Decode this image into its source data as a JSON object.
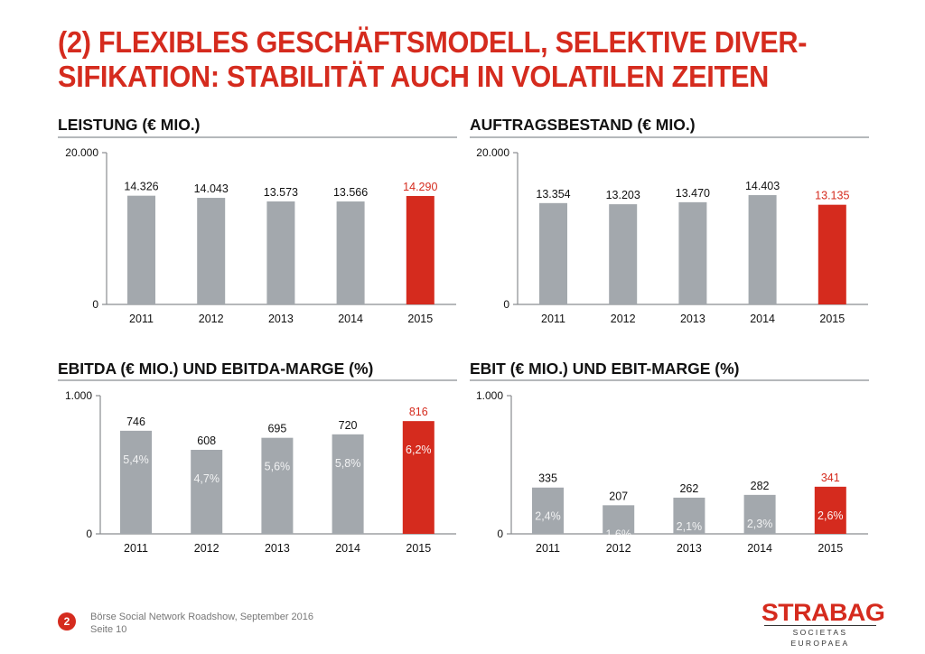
{
  "header": {
    "title_line1": "(2) FLEXIBLES GESCHÄFTSMODELL, SELEKTIVE DIVER-",
    "title_line2": "SIFIKATION: STABILITÄT AUCH IN VOLATILEN ZEITEN"
  },
  "colors": {
    "accent": "#d52b1e",
    "bar_default": "#a3a8ad",
    "bar_highlight": "#d52b1e",
    "axis": "#8a8d90"
  },
  "chart_data": [
    {
      "type": "bar",
      "title": "LEISTUNG (€ MIO.)",
      "categories": [
        "2011",
        "2012",
        "2013",
        "2014",
        "2015"
      ],
      "values": [
        14326,
        14043,
        13573,
        13566,
        14290
      ],
      "value_labels": [
        "14.326",
        "14.043",
        "13.573",
        "13.566",
        "14.290"
      ],
      "inner_labels": [],
      "highlight_index": 4,
      "ylim": [
        0,
        20000
      ],
      "ytick_labels": [
        "0",
        "20.000"
      ],
      "xlabel": "",
      "ylabel": "",
      "grid": false
    },
    {
      "type": "bar",
      "title": "AUFTRAGSBESTAND (€ MIO.)",
      "categories": [
        "2011",
        "2012",
        "2013",
        "2014",
        "2015"
      ],
      "values": [
        13354,
        13203,
        13470,
        14403,
        13135
      ],
      "value_labels": [
        "13.354",
        "13.203",
        "13.470",
        "14.403",
        "13.135"
      ],
      "inner_labels": [],
      "highlight_index": 4,
      "ylim": [
        0,
        20000
      ],
      "ytick_labels": [
        "0",
        "20.000"
      ],
      "xlabel": "",
      "ylabel": "",
      "grid": false
    },
    {
      "type": "bar",
      "title": "EBITDA (€ MIO.) UND EBITDA-MARGE (%)",
      "categories": [
        "2011",
        "2012",
        "2013",
        "2014",
        "2015"
      ],
      "values": [
        746,
        608,
        695,
        720,
        816
      ],
      "value_labels": [
        "746",
        "608",
        "695",
        "720",
        "816"
      ],
      "inner_labels": [
        "5,4%",
        "4,7%",
        "5,6%",
        "5,8%",
        "6,2%"
      ],
      "margin_percent": [
        5.4,
        4.7,
        5.6,
        5.8,
        6.2
      ],
      "highlight_index": 4,
      "ylim": [
        0,
        1000
      ],
      "ytick_labels": [
        "0",
        "1.000"
      ],
      "xlabel": "",
      "ylabel": "",
      "grid": false
    },
    {
      "type": "bar",
      "title": "EBIT (€ MIO.) UND EBIT-MARGE (%)",
      "categories": [
        "2011",
        "2012",
        "2013",
        "2014",
        "2015"
      ],
      "values": [
        335,
        207,
        262,
        282,
        341
      ],
      "value_labels": [
        "335",
        "207",
        "262",
        "282",
        "341"
      ],
      "inner_labels": [
        "2,4%",
        "1,6%",
        "2,1%",
        "2,3%",
        "2,6%"
      ],
      "margin_percent": [
        2.4,
        1.6,
        2.1,
        2.3,
        2.6
      ],
      "highlight_index": 4,
      "ylim": [
        0,
        1000
      ],
      "ytick_labels": [
        "0",
        "1.000"
      ],
      "xlabel": "",
      "ylabel": "",
      "grid": false
    }
  ],
  "footer": {
    "page_badge": "2",
    "event": "Börse Social Network Roadshow, September 2016",
    "page": "Seite 10"
  },
  "logo": {
    "name": "STRABAG",
    "subtitle": "SOCIETAS EUROPAEA"
  }
}
